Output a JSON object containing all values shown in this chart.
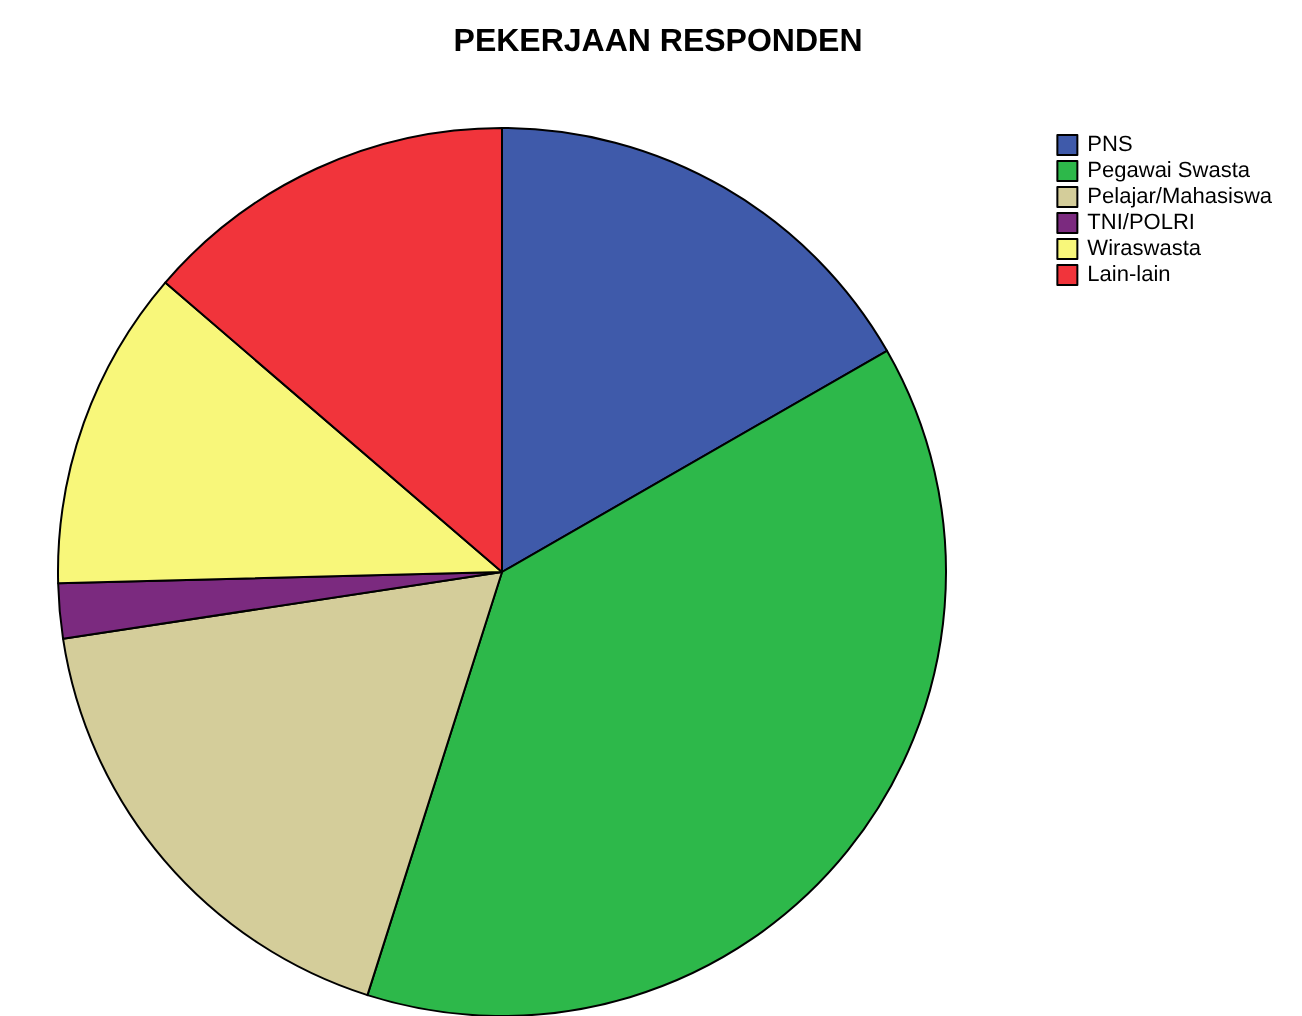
{
  "chart_data": {
    "type": "pie",
    "title": "PEKERJAAN RESPONDEN",
    "categories": [
      "PNS",
      "Pegawai Swasta",
      "Pelajar/Mahasiswa",
      "TNI/POLRI",
      "Wiraswasta",
      "Lain-lain"
    ],
    "values": [
      16.7,
      38.2,
      17.7,
      2.0,
      11.7,
      13.7
    ],
    "colors": [
      "#3f5aaa",
      "#2db84a",
      "#d4cd9a",
      "#7b2a7f",
      "#f8f77a",
      "#f1343b"
    ],
    "legend": "top right"
  }
}
